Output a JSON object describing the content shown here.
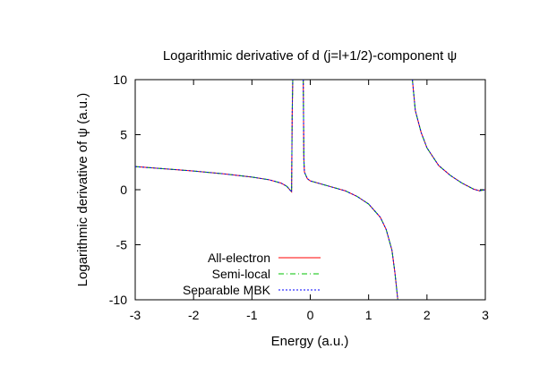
{
  "chart_data": {
    "type": "line",
    "title": "Logarithmic derivative of d (j=l+1/2)-component ψ",
    "xlabel": "Energy (a.u.)",
    "ylabel": "Logarithmic derivative of ψ (a.u.)",
    "xlim": [
      -3,
      3
    ],
    "ylim": [
      -10,
      10
    ],
    "xticks": [
      -3,
      -2,
      -1,
      0,
      1,
      2,
      3
    ],
    "yticks": [
      -10,
      -5,
      0,
      5,
      10
    ],
    "xtick_labels": [
      "-3",
      "-2",
      "-1",
      "0",
      "1",
      "2",
      "3"
    ],
    "ytick_labels": [
      "-10",
      "-5",
      "0",
      "5",
      "10"
    ],
    "grid": false,
    "legend_position": "bottom-left",
    "series": [
      {
        "name": "All-electron",
        "color": "#ff0000",
        "dash": "solid",
        "segments": [
          [
            [
              -3.0,
              2.1
            ],
            [
              -2.5,
              1.9
            ],
            [
              -2.0,
              1.7
            ],
            [
              -1.5,
              1.45
            ],
            [
              -1.0,
              1.15
            ],
            [
              -0.7,
              0.9
            ],
            [
              -0.5,
              0.6
            ],
            [
              -0.4,
              0.3
            ],
            [
              -0.32,
              -0.2
            ],
            [
              -0.31,
              6.8
            ],
            [
              -0.3,
              10.0
            ]
          ],
          [
            [
              -0.12,
              10.0
            ],
            [
              -0.11,
              2.8
            ],
            [
              -0.1,
              1.6
            ],
            [
              -0.05,
              1.0
            ],
            [
              0.0,
              0.8
            ],
            [
              0.3,
              0.35
            ],
            [
              0.6,
              -0.1
            ],
            [
              0.8,
              -0.6
            ],
            [
              1.0,
              -1.3
            ],
            [
              1.2,
              -2.5
            ],
            [
              1.3,
              -3.6
            ],
            [
              1.4,
              -5.5
            ],
            [
              1.45,
              -7.5
            ],
            [
              1.5,
              -10.0
            ]
          ],
          [
            [
              1.75,
              10.0
            ],
            [
              1.8,
              7.2
            ],
            [
              1.9,
              5.2
            ],
            [
              2.0,
              3.8
            ],
            [
              2.2,
              2.2
            ],
            [
              2.4,
              1.3
            ],
            [
              2.6,
              0.6
            ],
            [
              2.8,
              0.05
            ],
            [
              2.9,
              -0.1
            ],
            [
              3.0,
              0.0
            ]
          ]
        ]
      },
      {
        "name": "Semi-local",
        "color": "#00c000",
        "dash": "dashdot",
        "segments": [
          [
            [
              -3.0,
              2.1
            ],
            [
              -2.5,
              1.9
            ],
            [
              -2.0,
              1.7
            ],
            [
              -1.5,
              1.45
            ],
            [
              -1.0,
              1.15
            ],
            [
              -0.7,
              0.9
            ],
            [
              -0.5,
              0.6
            ],
            [
              -0.4,
              0.3
            ],
            [
              -0.32,
              -0.2
            ],
            [
              -0.31,
              6.8
            ],
            [
              -0.3,
              10.0
            ]
          ],
          [
            [
              -0.12,
              10.0
            ],
            [
              -0.11,
              2.8
            ],
            [
              -0.1,
              1.6
            ],
            [
              -0.05,
              1.0
            ],
            [
              0.0,
              0.8
            ],
            [
              0.3,
              0.35
            ],
            [
              0.6,
              -0.1
            ],
            [
              0.8,
              -0.6
            ],
            [
              1.0,
              -1.3
            ],
            [
              1.2,
              -2.5
            ],
            [
              1.3,
              -3.6
            ],
            [
              1.4,
              -5.5
            ],
            [
              1.45,
              -7.5
            ],
            [
              1.5,
              -10.0
            ]
          ],
          [
            [
              1.75,
              10.0
            ],
            [
              1.8,
              7.2
            ],
            [
              1.9,
              5.2
            ],
            [
              2.0,
              3.8
            ],
            [
              2.2,
              2.2
            ],
            [
              2.4,
              1.3
            ],
            [
              2.6,
              0.6
            ],
            [
              2.8,
              0.05
            ],
            [
              2.9,
              -0.1
            ],
            [
              3.0,
              0.0
            ]
          ]
        ]
      },
      {
        "name": "Separable MBK",
        "color": "#0000ff",
        "dash": "dotted",
        "segments": [
          [
            [
              -3.0,
              2.1
            ],
            [
              -2.5,
              1.9
            ],
            [
              -2.0,
              1.7
            ],
            [
              -1.5,
              1.45
            ],
            [
              -1.0,
              1.15
            ],
            [
              -0.7,
              0.9
            ],
            [
              -0.5,
              0.6
            ],
            [
              -0.4,
              0.3
            ],
            [
              -0.32,
              -0.2
            ],
            [
              -0.31,
              6.8
            ],
            [
              -0.3,
              10.0
            ]
          ],
          [
            [
              -0.12,
              10.0
            ],
            [
              -0.11,
              2.8
            ],
            [
              -0.1,
              1.6
            ],
            [
              -0.05,
              1.0
            ],
            [
              0.0,
              0.8
            ],
            [
              0.3,
              0.35
            ],
            [
              0.6,
              -0.1
            ],
            [
              0.8,
              -0.6
            ],
            [
              1.0,
              -1.3
            ],
            [
              1.2,
              -2.5
            ],
            [
              1.3,
              -3.6
            ],
            [
              1.4,
              -5.5
            ],
            [
              1.45,
              -7.5
            ],
            [
              1.5,
              -10.0
            ]
          ],
          [
            [
              1.75,
              10.0
            ],
            [
              1.8,
              7.2
            ],
            [
              1.9,
              5.2
            ],
            [
              2.0,
              3.8
            ],
            [
              2.2,
              2.2
            ],
            [
              2.4,
              1.3
            ],
            [
              2.6,
              0.6
            ],
            [
              2.8,
              0.05
            ],
            [
              2.9,
              -0.1
            ],
            [
              3.0,
              0.0
            ]
          ]
        ]
      }
    ]
  }
}
